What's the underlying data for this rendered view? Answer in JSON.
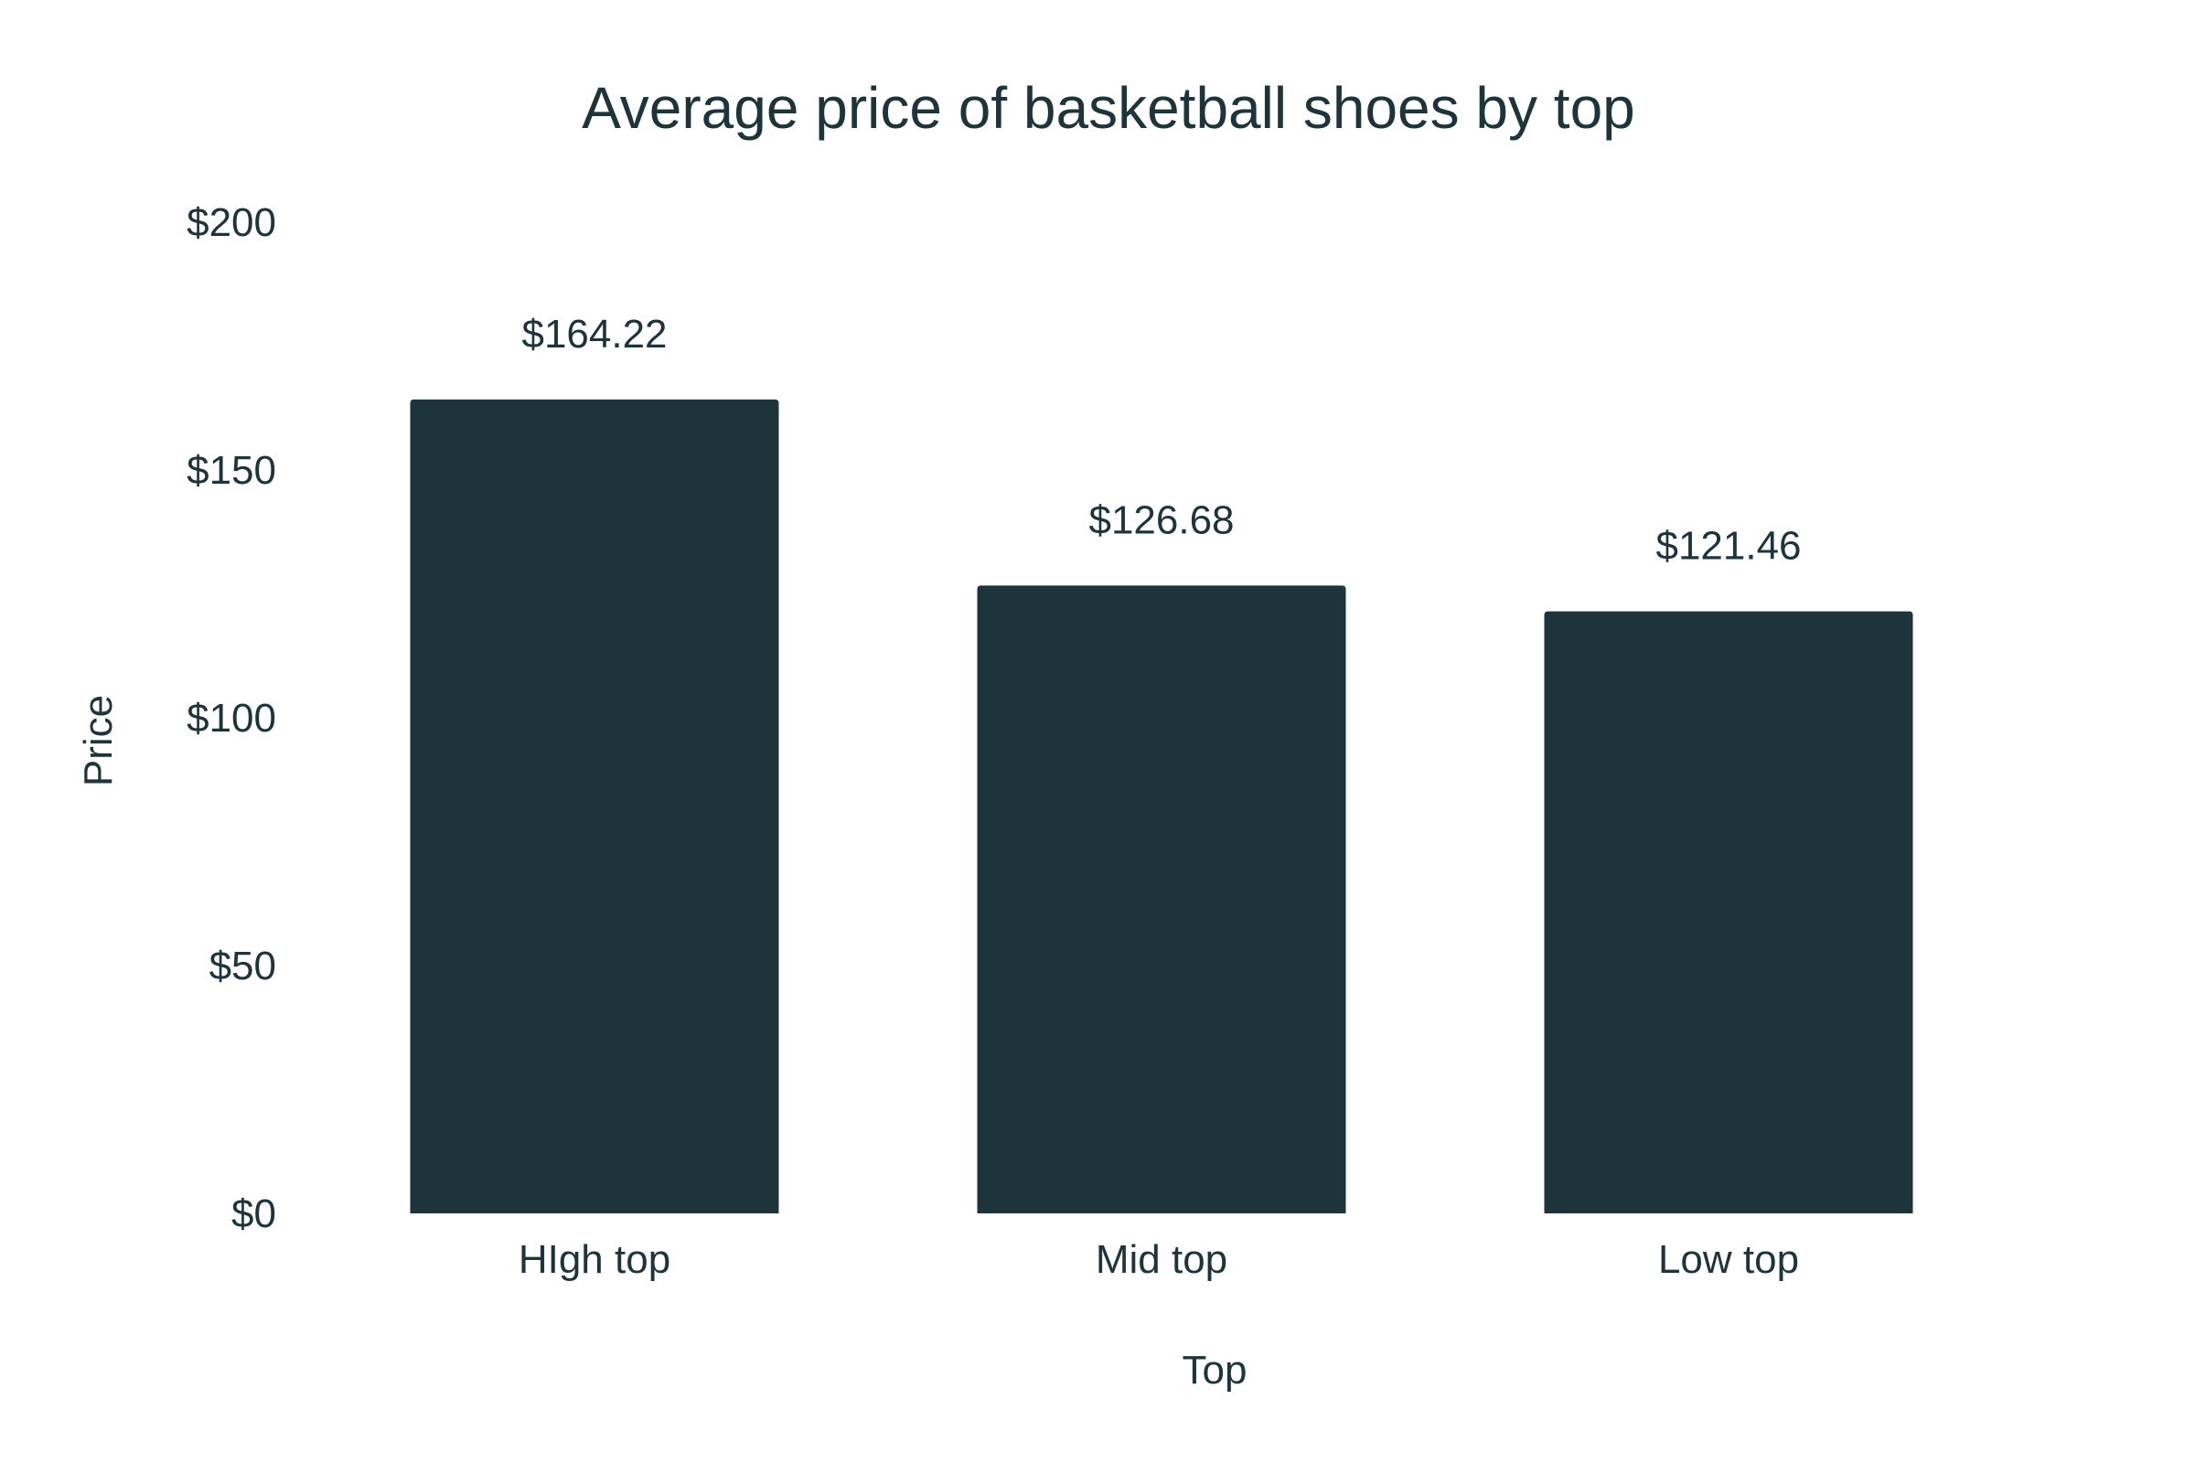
{
  "chart_data": {
    "type": "bar",
    "title": "Average price of basketball shoes by top",
    "xlabel": "Top",
    "ylabel": "Price",
    "categories": [
      "HIgh top",
      "Mid top",
      "Low top"
    ],
    "values": [
      164.22,
      126.68,
      121.46
    ],
    "data_labels": [
      "$164.22",
      "$126.68",
      "$121.46"
    ],
    "ylim": [
      0,
      200
    ],
    "y_ticks": [
      0,
      50,
      100,
      150,
      200
    ],
    "y_tick_labels": [
      "$0",
      "$50",
      "$100",
      "$150",
      "$200"
    ],
    "grid": false,
    "legend": "none",
    "colors": {
      "bar": "#1d343b",
      "text": "#1d343b",
      "background": "#ffffff"
    }
  }
}
